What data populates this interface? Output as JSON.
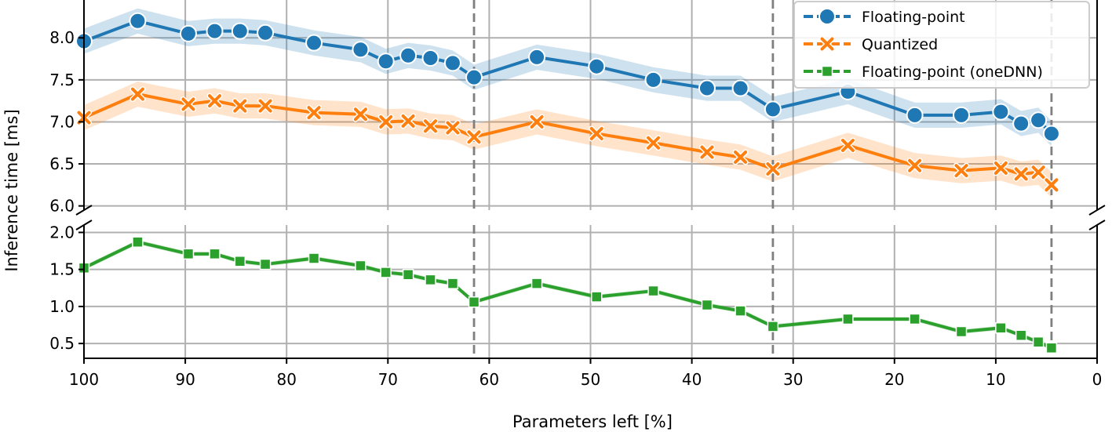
{
  "chart_data": {
    "type": "line",
    "xlabel": "Parameters left [%]",
    "ylabel": "Inference time [ms]",
    "x_reversed": true,
    "xlim": [
      100,
      0
    ],
    "xticks": [
      100,
      90,
      80,
      70,
      60,
      50,
      40,
      30,
      20,
      10,
      0
    ],
    "broken_y_axis": true,
    "upper_ylim": [
      5.95,
      8.45
    ],
    "upper_yticks": [
      "6.0",
      "6.5",
      "7.0",
      "7.5",
      "8.0"
    ],
    "lower_ylim": [
      0.3,
      2.1
    ],
    "lower_yticks": [
      "0.5",
      "1.0",
      "1.5",
      "2.0"
    ],
    "grid": true,
    "legend_position": "top-right",
    "vertical_dashed_markers_x": [
      61.5,
      32.0,
      4.5
    ],
    "series": [
      {
        "name": "Floating-point",
        "panel": "upper",
        "color": "#1f77b4",
        "marker": "circle",
        "x": [
          100,
          94.7,
          89.7,
          87.1,
          84.6,
          82.1,
          77.3,
          72.7,
          70.2,
          68.0,
          65.8,
          63.6,
          61.5,
          55.3,
          49.4,
          43.8,
          38.5,
          35.2,
          32.0,
          24.6,
          18.0,
          13.4,
          9.5,
          7.5,
          5.8,
          4.5
        ],
        "values": [
          7.96,
          8.2,
          8.05,
          8.08,
          8.08,
          8.06,
          7.94,
          7.86,
          7.72,
          7.79,
          7.76,
          7.7,
          7.53,
          7.77,
          7.66,
          7.5,
          7.4,
          7.4,
          7.15,
          7.36,
          7.08,
          7.08,
          7.12,
          6.98,
          7.02,
          6.86
        ],
        "band": 0.15
      },
      {
        "name": "Quantized",
        "panel": "upper",
        "color": "#ff7f0e",
        "marker": "x",
        "x": [
          100,
          94.7,
          89.7,
          87.1,
          84.6,
          82.1,
          77.3,
          72.7,
          70.2,
          68.0,
          65.8,
          63.6,
          61.5,
          55.3,
          49.4,
          43.8,
          38.5,
          35.2,
          32.0,
          24.6,
          18.0,
          13.4,
          9.5,
          7.5,
          5.8,
          4.5
        ],
        "values": [
          7.05,
          7.33,
          7.21,
          7.25,
          7.19,
          7.19,
          7.11,
          7.09,
          7.0,
          7.01,
          6.95,
          6.93,
          6.82,
          7.0,
          6.86,
          6.75,
          6.64,
          6.58,
          6.44,
          6.72,
          6.48,
          6.42,
          6.45,
          6.38,
          6.4,
          6.25
        ],
        "band": 0.15
      },
      {
        "name": "Floating-point (oneDNN)",
        "panel": "lower",
        "color": "#2ca02c",
        "marker": "square",
        "x": [
          100,
          94.7,
          89.7,
          87.1,
          84.6,
          82.1,
          77.3,
          72.7,
          70.2,
          68.0,
          65.8,
          63.6,
          61.5,
          55.3,
          49.4,
          43.8,
          38.5,
          35.2,
          32.0,
          24.6,
          18.0,
          13.4,
          9.5,
          7.5,
          5.8,
          4.5
        ],
        "values": [
          1.52,
          1.87,
          1.71,
          1.71,
          1.61,
          1.57,
          1.65,
          1.55,
          1.46,
          1.43,
          1.36,
          1.31,
          1.06,
          1.31,
          1.13,
          1.21,
          1.02,
          0.94,
          0.73,
          0.83,
          0.83,
          0.66,
          0.71,
          0.61,
          0.52,
          0.44
        ],
        "band": 0.03
      }
    ]
  }
}
